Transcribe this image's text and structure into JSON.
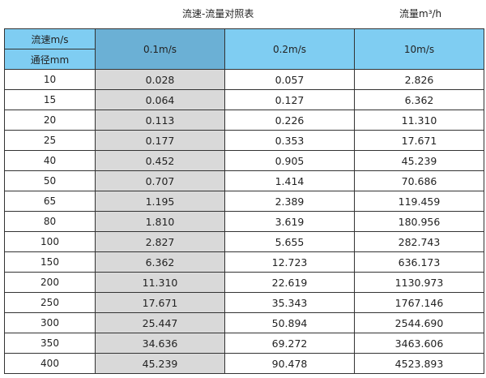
{
  "title": "流速-流量对照表",
  "unit_label": "流量m³/h",
  "chart_data": {
    "type": "table",
    "title": "流速-流量对照表",
    "header": {
      "row_label_top": "流速m/s",
      "row_label_bottom": "通径mm",
      "columns": [
        "0.1m/s",
        "0.2m/s",
        "10m/s"
      ]
    },
    "colors": {
      "header": "#7fcdf2",
      "selected_header": "#6bb0d5",
      "selected_column": "#d9d9d9"
    },
    "rows": [
      {
        "dn": "10",
        "values": [
          "0.028",
          "0.057",
          "2.826"
        ]
      },
      {
        "dn": "15",
        "values": [
          "0.064",
          "0.127",
          "6.362"
        ]
      },
      {
        "dn": "20",
        "values": [
          "0.113",
          "0.226",
          "11.310"
        ]
      },
      {
        "dn": "25",
        "values": [
          "0.177",
          "0.353",
          "17.671"
        ]
      },
      {
        "dn": "40",
        "values": [
          "0.452",
          "0.905",
          "45.239"
        ]
      },
      {
        "dn": "50",
        "values": [
          "0.707",
          "1.414",
          "70.686"
        ]
      },
      {
        "dn": "65",
        "values": [
          "1.195",
          "2.389",
          "119.459"
        ]
      },
      {
        "dn": "80",
        "values": [
          "1.810",
          "3.619",
          "180.956"
        ]
      },
      {
        "dn": "100",
        "values": [
          "2.827",
          "5.655",
          "282.743"
        ]
      },
      {
        "dn": "150",
        "values": [
          "6.362",
          "12.723",
          "636.173"
        ]
      },
      {
        "dn": "200",
        "values": [
          "11.310",
          "22.619",
          "1130.973"
        ]
      },
      {
        "dn": "250",
        "values": [
          "17.671",
          "35.343",
          "1767.146"
        ]
      },
      {
        "dn": "300",
        "values": [
          "25.447",
          "50.894",
          "2544.690"
        ]
      },
      {
        "dn": "350",
        "values": [
          "34.636",
          "69.272",
          "3463.606"
        ]
      },
      {
        "dn": "400",
        "values": [
          "45.239",
          "90.478",
          "4523.893"
        ]
      }
    ]
  }
}
